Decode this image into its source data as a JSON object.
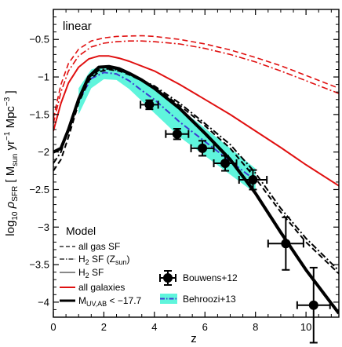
{
  "chart_data": {
    "type": "line",
    "annotation": "linear",
    "xlabel": "z",
    "ylabel": {
      "pre": "log",
      "sub10": "10",
      "rho": " ρ",
      "sub_sfr": "SFR",
      "bracket": " [ M",
      "sub_sun": "sun",
      "units": " yr",
      "sup1": "−1",
      "mpc": " Mpc",
      "sup3": "−3",
      "close": " ]"
    },
    "xlim": [
      0,
      11.3
    ],
    "ylim": [
      -4.2,
      -0.1
    ],
    "x_ticks": [
      0,
      2,
      4,
      6,
      8,
      10
    ],
    "x_tick_labels": [
      "0",
      "2",
      "4",
      "6",
      "8",
      "10"
    ],
    "y_ticks": [
      -4,
      -3.5,
      -3,
      -2.5,
      -2,
      -1.5,
      -1,
      -0.5
    ],
    "y_tick_labels": [
      "−4",
      "−3.5",
      "−3",
      "−2.5",
      "−2",
      "−1.5",
      "−1",
      "−0.5"
    ],
    "legend_model": {
      "title": "Model",
      "items": [
        {
          "label": "all gas SF",
          "style": "dashed",
          "color": "#666666"
        },
        {
          "label_pre": "H",
          "label_sub": "2",
          "label_mid": " SF (Z",
          "label_sub2": "sun",
          "label_post": ")",
          "style": "dashdot",
          "color": "#666666"
        },
        {
          "label_pre": "H",
          "label_sub": "2",
          "label_post": " SF",
          "style": "solid",
          "color": "#888888"
        },
        {
          "label": "all galaxies",
          "style": "solid",
          "color": "#e01010"
        },
        {
          "label_pre": "M",
          "label_sub": "UV,AB",
          "label_post": " < −17.7",
          "style": "solid",
          "color": "#000000"
        }
      ]
    },
    "legend_obs": [
      {
        "label": "Bouwens+12",
        "marker": "circle-errorbar"
      },
      {
        "label": "Behroozi+13",
        "marker": "band-dashdot"
      }
    ],
    "colors": {
      "red": "#e01010",
      "black": "#000000",
      "band": "#5ff5dc",
      "blue": "#3c3cd2"
    },
    "series": [
      {
        "name": "all galaxies",
        "style": "solid",
        "color": "red",
        "width": 2,
        "x": [
          0,
          0.3,
          0.6,
          1.0,
          1.4,
          1.8,
          2.2,
          2.6,
          3.0,
          4.0,
          5.0,
          6.0,
          7.0,
          8.0,
          9.0,
          10.0,
          11.3
        ],
        "y": [
          -1.72,
          -1.35,
          -1.08,
          -0.87,
          -0.76,
          -0.72,
          -0.72,
          -0.75,
          -0.79,
          -0.92,
          -1.1,
          -1.3,
          -1.5,
          -1.72,
          -1.94,
          -2.17,
          -2.45
        ]
      },
      {
        "name": "all gas SF",
        "style": "dashed",
        "color": "red",
        "width": 1.6,
        "x": [
          0,
          0.3,
          0.6,
          1.0,
          1.5,
          2.0,
          2.5,
          3.0,
          3.5,
          4.0,
          5.0,
          6.0,
          7.0,
          8.0,
          9.0,
          10.0,
          11.3
        ],
        "y": [
          -1.55,
          -1.1,
          -0.82,
          -0.63,
          -0.52,
          -0.48,
          -0.46,
          -0.455,
          -0.45,
          -0.46,
          -0.5,
          -0.56,
          -0.64,
          -0.74,
          -0.85,
          -0.98,
          -1.15
        ]
      },
      {
        "name": "H2 SF (Zsun)",
        "style": "dashdot",
        "color": "red",
        "width": 1.6,
        "x": [
          0,
          0.3,
          0.6,
          1.0,
          1.5,
          2.0,
          2.5,
          3.0,
          3.5,
          4.0,
          5.0,
          6.0,
          7.0,
          8.0,
          9.0,
          10.0,
          11.3
        ],
        "y": [
          -1.62,
          -1.2,
          -0.92,
          -0.72,
          -0.6,
          -0.55,
          -0.53,
          -0.52,
          -0.52,
          -0.53,
          -0.56,
          -0.62,
          -0.7,
          -0.8,
          -0.92,
          -1.05,
          -1.22
        ]
      },
      {
        "name": "M_UV < -17.7 all gas SF",
        "style": "dashed",
        "color": "black",
        "width": 2,
        "x": [
          0,
          0.3,
          0.6,
          1.0,
          1.4,
          1.8,
          2.2,
          2.6,
          3.0,
          3.5,
          4.0,
          5.0,
          6.0,
          7.0,
          8.0,
          9.0,
          10.0,
          11.3
        ],
        "y": [
          -2.25,
          -2.1,
          -1.8,
          -1.35,
          -1.05,
          -0.93,
          -0.9,
          -0.92,
          -0.97,
          -1.05,
          -1.14,
          -1.38,
          -1.65,
          -1.95,
          -2.35,
          -2.8,
          -3.2,
          -3.62
        ]
      },
      {
        "name": "M_UV < -17.7 H2 SF (Zsun)",
        "style": "dashdot",
        "color": "black",
        "width": 2,
        "x": [
          0,
          0.3,
          0.6,
          1.0,
          1.4,
          1.8,
          2.2,
          2.6,
          3.0,
          3.5,
          4.0,
          5.0,
          6.0,
          7.0,
          8.0,
          9.0,
          10.0,
          11.3
        ],
        "y": [
          -2.15,
          -2.0,
          -1.7,
          -1.3,
          -1.02,
          -0.91,
          -0.89,
          -0.91,
          -0.96,
          -1.04,
          -1.12,
          -1.35,
          -1.62,
          -1.9,
          -2.28,
          -2.75,
          -3.15,
          -3.58
        ]
      },
      {
        "name": "M_UV < -17.7 H2 SF",
        "style": "solid",
        "color": "black",
        "width": 4,
        "x": [
          0,
          0.3,
          0.6,
          1.0,
          1.4,
          1.8,
          2.2,
          2.6,
          3.0,
          3.5,
          4.0,
          5.0,
          6.0,
          7.0,
          8.0,
          9.0,
          10.0,
          11.3
        ],
        "y": [
          -2.0,
          -1.95,
          -1.7,
          -1.3,
          -1.0,
          -0.87,
          -0.86,
          -0.89,
          -0.95,
          -1.04,
          -1.15,
          -1.42,
          -1.75,
          -2.1,
          -2.55,
          -3.07,
          -3.57,
          -4.15
        ]
      }
    ],
    "behroozi": {
      "x": [
        1.0,
        1.5,
        2.0,
        2.5,
        3.0,
        3.5,
        4.0,
        5.0,
        6.0,
        7.0,
        8.0
      ],
      "lower": [
        -1.5,
        -1.15,
        -1.03,
        -1.04,
        -1.16,
        -1.32,
        -1.48,
        -1.8,
        -2.05,
        -2.3,
        -2.55
      ],
      "upper": [
        -1.15,
        -0.9,
        -0.85,
        -0.88,
        -0.95,
        -1.04,
        -1.12,
        -1.42,
        -1.68,
        -1.95,
        -2.22
      ],
      "central": [
        -1.32,
        -1.02,
        -0.94,
        -0.96,
        -1.05,
        -1.18,
        -1.3,
        -1.6,
        -1.86,
        -2.12,
        -2.38
      ]
    },
    "bouwens": [
      {
        "x": 3.8,
        "y": -1.37,
        "xerr": 0.35,
        "yerr": 0.06
      },
      {
        "x": 4.9,
        "y": -1.76,
        "xerr": 0.45,
        "yerr": 0.07
      },
      {
        "x": 5.9,
        "y": -1.95,
        "xerr": 0.45,
        "yerr": 0.1
      },
      {
        "x": 6.8,
        "y": -2.15,
        "xerr": 0.45,
        "yerr": 0.1
      },
      {
        "x": 7.9,
        "y": -2.37,
        "xerr": 0.55,
        "yerr": 0.13
      },
      {
        "x": 9.2,
        "y": -3.22,
        "xerr": 0.7,
        "yerr": 0.35
      },
      {
        "x": 10.3,
        "y": -4.04,
        "xerr": 0.65,
        "yerr": 0.5
      }
    ]
  }
}
